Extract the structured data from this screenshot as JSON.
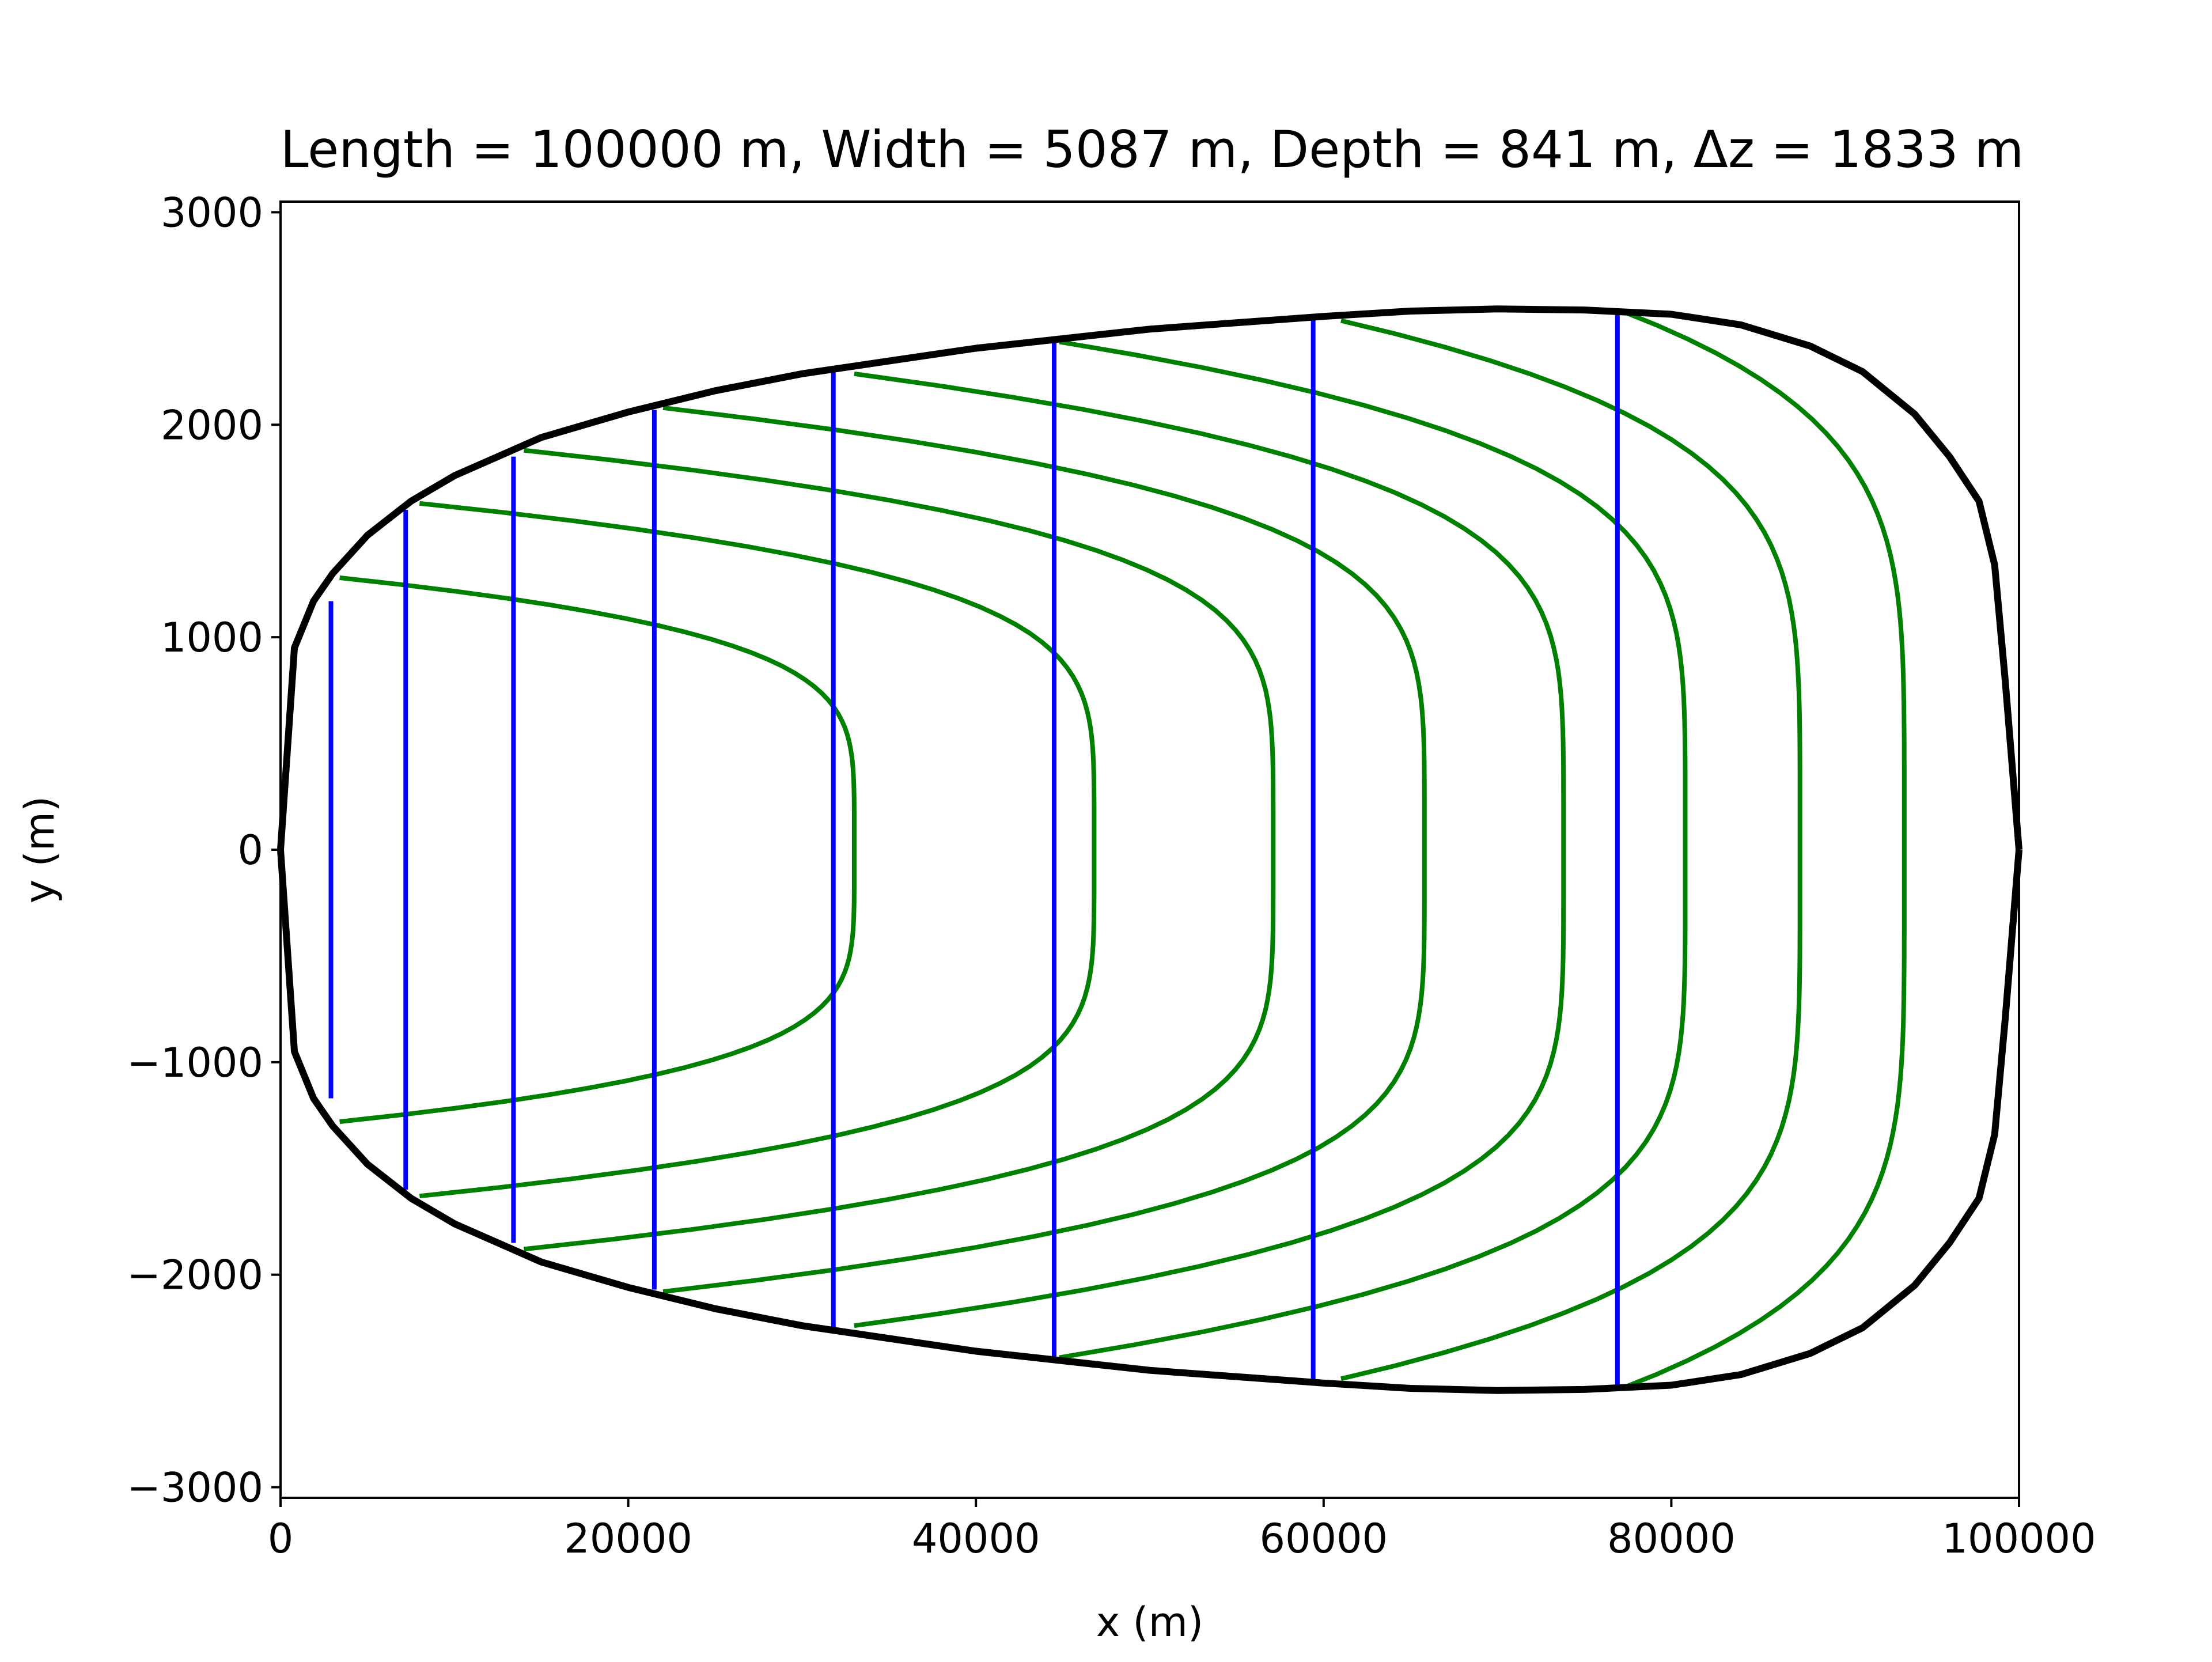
{
  "chart_data": {
    "type": "line",
    "title": "Length = 100000 m, Width = 5087 m, Depth = 841 m, Δz = 1833 m",
    "xlabel": "x (m)",
    "ylabel": "y (m)",
    "xlim": [
      0,
      100000
    ],
    "ylim": [
      -3050,
      3050
    ],
    "xticks": [
      0,
      20000,
      40000,
      60000,
      80000,
      100000
    ],
    "xtick_labels": [
      "0",
      "20000",
      "40000",
      "60000",
      "80000",
      "100000"
    ],
    "yticks": [
      -3000,
      -2000,
      -1000,
      0,
      1000,
      2000,
      3000
    ],
    "ytick_labels": [
      "−3000",
      "−2000",
      "−1000",
      "0",
      "1000",
      "2000",
      "3000"
    ],
    "grid": false,
    "legend": false,
    "outline": {
      "color": "#000000",
      "x": [
        0,
        800,
        1900,
        3000,
        5000,
        7500,
        10000,
        15000,
        20000,
        25000,
        30000,
        40000,
        50000,
        60000,
        65000,
        70000,
        75000,
        80000,
        84000,
        88000,
        91000,
        94000,
        96000,
        97700,
        98600,
        99200,
        100000
      ],
      "y": [
        0,
        950,
        1170,
        1300,
        1480,
        1640,
        1760,
        1940,
        2060,
        2160,
        2240,
        2360,
        2450,
        2510,
        2535,
        2545,
        2540,
        2520,
        2470,
        2370,
        2250,
        2050,
        1850,
        1640,
        1340,
        800,
        0
      ]
    },
    "cross_sections": {
      "color": "#0000ff",
      "x": [
        2900,
        7200,
        13400,
        21500,
        31800,
        44500,
        59400,
        76900
      ],
      "y_top": [
        1170,
        1600,
        1850,
        2070,
        2250,
        2390,
        2500,
        2530
      ],
      "y_bottom": [
        -1170,
        -1600,
        -1850,
        -2070,
        -2250,
        -2390,
        -2500,
        -2530
      ]
    },
    "contours": {
      "color": "#008000",
      "x_start": [
        3400,
        8000,
        14000,
        22000,
        33000,
        44800,
        61000,
        77300
      ],
      "y_start": [
        1280,
        1630,
        1880,
        2080,
        2240,
        2390,
        2490,
        2530
      ],
      "x_mid": [
        33000,
        46800,
        57100,
        65800,
        73800,
        80800,
        87400,
        93400
      ]
    }
  }
}
